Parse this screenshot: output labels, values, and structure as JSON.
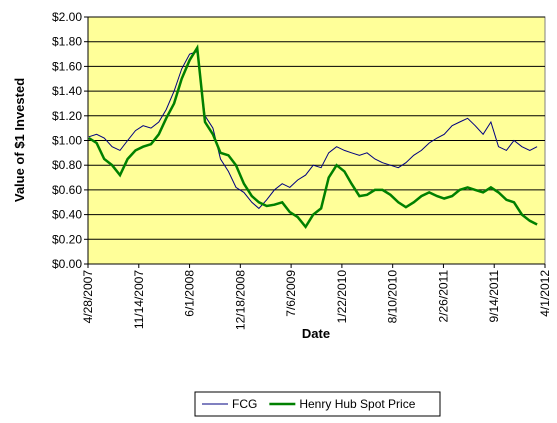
{
  "chart_data": {
    "type": "line",
    "x_label": "Date",
    "y_label": "Value of $1 Invested",
    "x": [
      "5/1/2007",
      "6/1/2007",
      "7/1/2007",
      "8/1/2007",
      "9/1/2007",
      "10/1/2007",
      "11/1/2007",
      "12/1/2007",
      "1/1/2008",
      "2/1/2008",
      "3/1/2008",
      "4/1/2008",
      "5/1/2008",
      "6/1/2008",
      "7/1/2008",
      "8/1/2008",
      "9/1/2008",
      "10/1/2008",
      "11/1/2008",
      "12/1/2008",
      "1/1/2009",
      "2/1/2009",
      "3/1/2009",
      "4/1/2009",
      "5/1/2009",
      "6/1/2009",
      "7/1/2009",
      "8/1/2009",
      "9/1/2009",
      "10/1/2009",
      "11/1/2009",
      "12/1/2009",
      "1/1/2010",
      "2/1/2010",
      "3/1/2010",
      "4/1/2010",
      "5/1/2010",
      "6/1/2010",
      "7/1/2010",
      "8/1/2010",
      "9/1/2010",
      "10/1/2010",
      "11/1/2010",
      "12/1/2010",
      "1/1/2011",
      "2/1/2011",
      "3/1/2011",
      "4/1/2011",
      "5/1/2011",
      "6/1/2011",
      "7/1/2011",
      "8/1/2011",
      "9/1/2011",
      "10/1/2011",
      "11/1/2011",
      "12/1/2011",
      "1/1/2012",
      "2/1/2012",
      "3/1/2012"
    ],
    "series": [
      {
        "name": "FCG",
        "color": "#000080",
        "values": [
          1.03,
          1.05,
          1.02,
          0.95,
          0.92,
          1.0,
          1.08,
          1.12,
          1.1,
          1.15,
          1.25,
          1.4,
          1.58,
          1.7,
          1.72,
          1.2,
          1.1,
          0.85,
          0.75,
          0.62,
          0.58,
          0.5,
          0.45,
          0.52,
          0.6,
          0.65,
          0.62,
          0.68,
          0.72,
          0.8,
          0.78,
          0.9,
          0.95,
          0.92,
          0.9,
          0.88,
          0.9,
          0.85,
          0.82,
          0.8,
          0.78,
          0.82,
          0.88,
          0.92,
          0.98,
          1.02,
          1.05,
          1.12,
          1.15,
          1.18,
          1.12,
          1.05,
          1.15,
          0.95,
          0.92,
          1.0,
          0.95,
          0.92,
          0.95
        ]
      },
      {
        "name": "Henry Hub Spot Price",
        "color": "#008000",
        "values": [
          1.02,
          0.98,
          0.85,
          0.8,
          0.72,
          0.85,
          0.92,
          0.95,
          0.97,
          1.05,
          1.18,
          1.3,
          1.5,
          1.65,
          1.75,
          1.15,
          1.05,
          0.9,
          0.88,
          0.8,
          0.65,
          0.55,
          0.5,
          0.47,
          0.48,
          0.5,
          0.42,
          0.38,
          0.3,
          0.4,
          0.45,
          0.7,
          0.8,
          0.75,
          0.65,
          0.55,
          0.56,
          0.6,
          0.6,
          0.56,
          0.5,
          0.46,
          0.5,
          0.55,
          0.58,
          0.55,
          0.53,
          0.55,
          0.6,
          0.62,
          0.6,
          0.58,
          0.62,
          0.58,
          0.52,
          0.5,
          0.4,
          0.35,
          0.32
        ]
      }
    ],
    "xlim": [
      "4/28/2007",
      "4/1/2012"
    ],
    "xticks": [
      "4/28/2007",
      "11/14/2007",
      "6/1/2008",
      "12/18/2008",
      "7/6/2009",
      "1/22/2010",
      "8/10/2010",
      "2/26/2011",
      "9/14/2011",
      "4/1/2012"
    ],
    "ylim": [
      0,
      2
    ],
    "yticks": [
      {
        "value": 0,
        "label": "$0.00"
      },
      {
        "value": 0.2,
        "label": "$0.20"
      },
      {
        "value": 0.4,
        "label": "$0.40"
      },
      {
        "value": 0.6,
        "label": "$0.60"
      },
      {
        "value": 0.8,
        "label": "$0.80"
      },
      {
        "value": 1.0,
        "label": "$1.00"
      },
      {
        "value": 1.2,
        "label": "$1.20"
      },
      {
        "value": 1.4,
        "label": "$1.40"
      },
      {
        "value": 1.6,
        "label": "$1.60"
      },
      {
        "value": 1.8,
        "label": "$1.80"
      },
      {
        "value": 2.0,
        "label": "$2.00"
      }
    ],
    "grid": true,
    "background": "#ffff99",
    "legend": "bottom"
  }
}
